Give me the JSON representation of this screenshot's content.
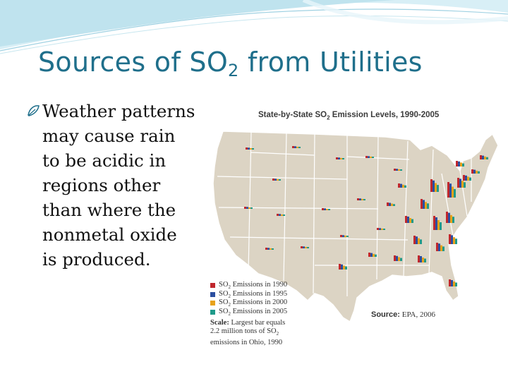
{
  "slide": {
    "title": "Sources of SO",
    "title_sub": "2",
    "title_rest": " from Utilities",
    "bullet_lines": [
      "Weather patterns",
      "may cause rain",
      "to be acidic in",
      "regions other",
      "than where the",
      "nonmetal oxide",
      "is produced."
    ],
    "bullet_icon": "leaf-bullet-icon"
  },
  "figure": {
    "title_pre": "State-by-State SO",
    "title_sub": "2",
    "title_post": " Emission Levels, 1990-2005",
    "legend": [
      {
        "pre": "SO",
        "sub": "2",
        "post": " Emissions in 1990",
        "color": "#c0272d"
      },
      {
        "pre": "SO",
        "sub": "2",
        "post": " Emissions in 1995",
        "color": "#2b4fa0"
      },
      {
        "pre": "SO",
        "sub": "2",
        "post": " Emissions in 2000",
        "color": "#e8a21a"
      },
      {
        "pre": "SO",
        "sub": "2",
        "post": " Emissions in 2005",
        "color": "#1f9a8a"
      }
    ],
    "scale_label": "Scale:",
    "scale_line1": " Largest bar equals",
    "scale_line2_pre": "2.2 million tons of SO",
    "scale_line2_sub": "2",
    "scale_line3": "emissions in Ohio, 1990",
    "source_label": "Source:",
    "source_text": " EPA, 2006",
    "map_fill": "#dcd4c4",
    "map_border": "#ffffff"
  },
  "accent_colors": {
    "title": "#1f6f8b",
    "swoosh": "#bfe3ee"
  }
}
